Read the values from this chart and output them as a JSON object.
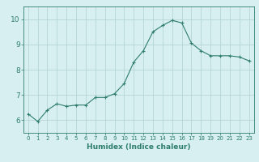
{
  "x": [
    0,
    1,
    2,
    3,
    4,
    5,
    6,
    7,
    8,
    9,
    10,
    11,
    12,
    13,
    14,
    15,
    16,
    17,
    18,
    19,
    20,
    21,
    22,
    23
  ],
  "y": [
    6.25,
    5.95,
    6.4,
    6.65,
    6.55,
    6.6,
    6.6,
    6.9,
    6.9,
    7.05,
    7.45,
    8.3,
    8.75,
    9.5,
    9.75,
    9.95,
    9.85,
    9.05,
    8.75,
    8.55,
    8.55,
    8.55,
    8.5,
    8.35
  ],
  "line_color": "#2e7d6e",
  "marker_color": "#2e7d6e",
  "bg_color": "#d7eff0",
  "grid_color": "#b0d0d0",
  "xlabel": "Humidex (Indice chaleur)",
  "ylabel": "",
  "xlim": [
    -0.5,
    23.5
  ],
  "ylim": [
    5.5,
    10.5
  ],
  "yticks": [
    6,
    7,
    8,
    9,
    10
  ],
  "xticks": [
    0,
    1,
    2,
    3,
    4,
    5,
    6,
    7,
    8,
    9,
    10,
    11,
    12,
    13,
    14,
    15,
    16,
    17,
    18,
    19,
    20,
    21,
    22,
    23
  ],
  "xlabel_fontsize": 6.5,
  "ytick_fontsize": 6.5,
  "xtick_fontsize": 5.0
}
